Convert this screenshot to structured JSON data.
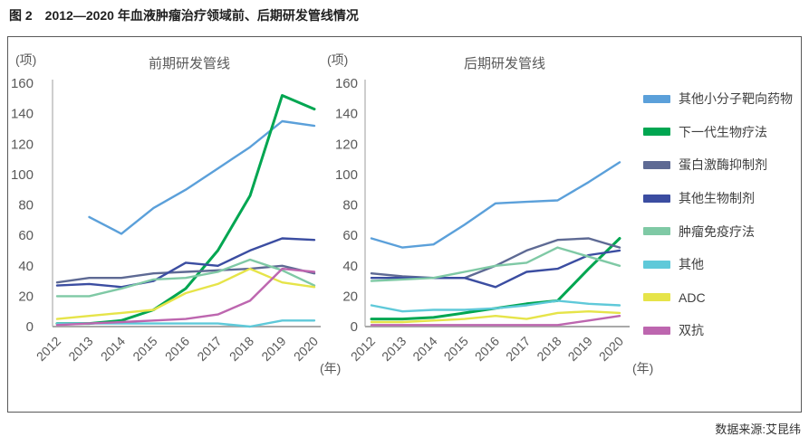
{
  "figure": {
    "caption": "图 2　2012—2020 年血液肿瘤治疗领域前、后期研发管线情况",
    "source": "数据来源:艾昆纬"
  },
  "chart_data": [
    {
      "type": "line",
      "title": "前期研发管线",
      "xlabel": "(年)",
      "ylabel": "(项)",
      "x": [
        "2012",
        "2013",
        "2014",
        "2015",
        "2016",
        "2017",
        "2018",
        "2019",
        "2020"
      ],
      "ylim": [
        0,
        160
      ],
      "y_ticks": [
        0,
        20,
        40,
        60,
        80,
        100,
        120,
        140,
        160
      ],
      "grid": false,
      "series": [
        {
          "id": "small-molecule-targeted",
          "name": "其他小分子靶向药物",
          "color": "#5BA0DA",
          "values": [
            null,
            72,
            61,
            78,
            90,
            104,
            118,
            135,
            132
          ]
        },
        {
          "id": "next-gen-bio",
          "name": "下一代生物疗法",
          "color": "#00A651",
          "values": [
            2,
            2,
            4,
            11,
            25,
            50,
            86,
            152,
            143
          ]
        },
        {
          "id": "protein-kinase-inhibitor",
          "name": "蛋白激酶抑制剂",
          "color": "#5E6A94",
          "values": [
            29,
            32,
            32,
            35,
            36,
            37,
            38,
            40,
            35
          ]
        },
        {
          "id": "other-biologics",
          "name": "其他生物制剂",
          "color": "#3B4DA1",
          "values": [
            27,
            28,
            26,
            30,
            42,
            40,
            50,
            58,
            57
          ]
        },
        {
          "id": "immuno-oncology",
          "name": "肿瘤免疫疗法",
          "color": "#7FC9A5",
          "values": [
            20,
            20,
            25,
            31,
            32,
            36,
            44,
            37,
            27
          ]
        },
        {
          "id": "other",
          "name": "其他",
          "color": "#5FC9D9",
          "values": [
            2,
            2,
            2,
            2,
            2,
            2,
            0,
            4,
            4
          ]
        },
        {
          "id": "adc",
          "name": "ADC",
          "color": "#E6E449",
          "values": [
            5,
            7,
            9,
            11,
            22,
            28,
            38,
            29,
            26
          ]
        },
        {
          "id": "bispecific",
          "name": "双抗",
          "color": "#BD66AF",
          "values": [
            1,
            2,
            3,
            4,
            5,
            8,
            17,
            38,
            36
          ]
        }
      ]
    },
    {
      "type": "line",
      "title": "后期研发管线",
      "xlabel": "(年)",
      "ylabel": "(项)",
      "x": [
        "2012",
        "2013",
        "2014",
        "2015",
        "2016",
        "2017",
        "2018",
        "2019",
        "2020"
      ],
      "ylim": [
        0,
        160
      ],
      "y_ticks": [
        0,
        20,
        40,
        60,
        80,
        100,
        120,
        140,
        160
      ],
      "grid": false,
      "series": [
        {
          "id": "small-molecule-targeted",
          "name": "其他小分子靶向药物",
          "color": "#5BA0DA",
          "values": [
            58,
            52,
            54,
            67,
            81,
            82,
            83,
            95,
            108
          ]
        },
        {
          "id": "next-gen-bio",
          "name": "下一代生物疗法",
          "color": "#00A651",
          "values": [
            5,
            5,
            6,
            9,
            12,
            15,
            17,
            38,
            58
          ]
        },
        {
          "id": "protein-kinase-inhibitor",
          "name": "蛋白激酶抑制剂",
          "color": "#5E6A94",
          "values": [
            35,
            33,
            32,
            32,
            40,
            50,
            57,
            58,
            52
          ]
        },
        {
          "id": "other-biologics",
          "name": "其他生物制剂",
          "color": "#3B4DA1",
          "values": [
            32,
            32,
            32,
            32,
            26,
            36,
            38,
            47,
            50
          ]
        },
        {
          "id": "immuno-oncology",
          "name": "肿瘤免疫疗法",
          "color": "#7FC9A5",
          "values": [
            30,
            31,
            32,
            36,
            40,
            42,
            52,
            46,
            40
          ]
        },
        {
          "id": "other",
          "name": "其他",
          "color": "#5FC9D9",
          "values": [
            14,
            10,
            11,
            11,
            12,
            14,
            17,
            15,
            14
          ]
        },
        {
          "id": "adc",
          "name": "ADC",
          "color": "#E6E449",
          "values": [
            3,
            3,
            4,
            5,
            7,
            5,
            9,
            10,
            9
          ]
        },
        {
          "id": "bispecific",
          "name": "双抗",
          "color": "#BD66AF",
          "values": [
            1,
            1,
            1,
            1,
            1,
            1,
            1,
            4,
            7
          ]
        }
      ]
    }
  ],
  "legend": {
    "items": [
      {
        "id": "small-molecule-targeted",
        "label": "其他小分子靶向药物",
        "color": "#5BA0DA"
      },
      {
        "id": "next-gen-bio",
        "label": "下一代生物疗法",
        "color": "#00A651"
      },
      {
        "id": "protein-kinase-inhibitor",
        "label": "蛋白激酶抑制剂",
        "color": "#5E6A94"
      },
      {
        "id": "other-biologics",
        "label": "其他生物制剂",
        "color": "#3B4DA1"
      },
      {
        "id": "immuno-oncology",
        "label": "肿瘤免疫疗法",
        "color": "#7FC9A5"
      },
      {
        "id": "other",
        "label": "其他",
        "color": "#5FC9D9"
      },
      {
        "id": "adc",
        "label": "ADC",
        "color": "#E6E449"
      },
      {
        "id": "bispecific",
        "label": "双抗",
        "color": "#BD66AF"
      }
    ]
  }
}
